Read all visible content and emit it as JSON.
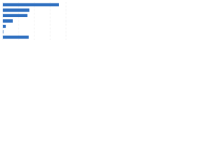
{
  "chart_data": {
    "type": "bar",
    "orientation": "horizontal",
    "categories": [
      null,
      null,
      null,
      null,
      null,
      null,
      null
    ],
    "values": [
      89,
      42,
      39,
      16,
      5,
      1,
      41
    ],
    "color": "#2e6fc0",
    "xlim": [
      0,
      100
    ],
    "xticks": [
      0,
      25,
      50,
      75,
      100
    ],
    "grid": true
  }
}
